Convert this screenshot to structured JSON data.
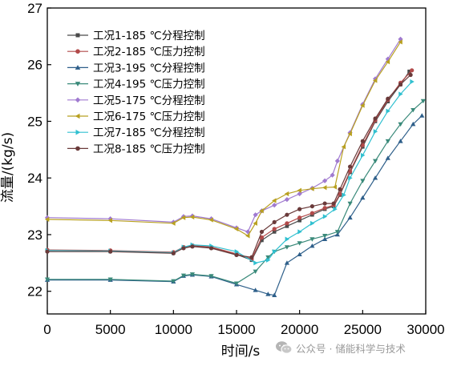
{
  "chart_data": {
    "type": "line",
    "title": "",
    "xlabel": "时间/s",
    "ylabel": "流量/(kg/s)",
    "xlim": [
      0,
      30000
    ],
    "ylim": [
      21.6,
      27
    ],
    "xticks": [
      0,
      5000,
      10000,
      15000,
      20000,
      25000,
      30000
    ],
    "yticks": [
      22,
      23,
      24,
      25,
      26,
      27
    ],
    "grid": false,
    "legend_position": "top-left",
    "series": [
      {
        "name": "工况1-185 ℃分程控制",
        "color": "#4a4a4a",
        "marker": "square",
        "x": [
          0,
          5000,
          10000,
          10800,
          11500,
          13000,
          15000,
          16200,
          17000,
          18000,
          19000,
          20000,
          21000,
          22000,
          22700,
          23200,
          24000,
          25000,
          26000,
          27000,
          28000,
          28700
        ],
        "y": [
          22.72,
          22.71,
          22.68,
          22.77,
          22.8,
          22.77,
          22.65,
          22.55,
          22.9,
          23.05,
          23.15,
          23.25,
          23.35,
          23.45,
          23.5,
          23.7,
          24.1,
          24.55,
          25.0,
          25.35,
          25.65,
          25.88
        ]
      },
      {
        "name": "工况2-185 ℃压力控制",
        "color": "#b24a4a",
        "marker": "circle",
        "x": [
          0,
          5000,
          10000,
          10800,
          11500,
          13000,
          15000,
          16200,
          17000,
          18000,
          19000,
          20000,
          21000,
          22000,
          22700,
          23200,
          24000,
          25000,
          26000,
          27000,
          28000,
          28900
        ],
        "y": [
          22.73,
          22.72,
          22.69,
          22.78,
          22.81,
          22.78,
          22.66,
          22.57,
          22.95,
          23.1,
          23.2,
          23.3,
          23.38,
          23.47,
          23.52,
          23.72,
          24.12,
          24.58,
          25.02,
          25.38,
          25.68,
          25.9
        ]
      },
      {
        "name": "工况3-195 ℃分程控制",
        "color": "#2e5f8a",
        "marker": "triangle-up",
        "x": [
          0,
          5000,
          10000,
          10800,
          11500,
          13000,
          15000,
          16500,
          17500,
          18000,
          19000,
          20000,
          21000,
          22000,
          23000,
          24000,
          25000,
          26000,
          27000,
          28000,
          29000,
          29700
        ],
        "y": [
          22.2,
          22.2,
          22.17,
          22.27,
          22.29,
          22.26,
          22.12,
          22.02,
          21.95,
          21.93,
          22.5,
          22.65,
          22.8,
          22.92,
          23.0,
          23.3,
          23.65,
          24.0,
          24.35,
          24.65,
          24.95,
          25.1
        ]
      },
      {
        "name": "工况4-195 ℃压力控制",
        "color": "#3a8a7a",
        "marker": "triangle-down",
        "x": [
          0,
          5000,
          10000,
          10800,
          11500,
          13000,
          15000,
          16500,
          17500,
          18000,
          19000,
          20000,
          21000,
          22000,
          23000,
          24000,
          25000,
          26000,
          27000,
          28000,
          29000,
          29800
        ],
        "y": [
          22.21,
          22.21,
          22.18,
          22.28,
          22.3,
          22.27,
          22.14,
          22.35,
          22.6,
          22.7,
          22.78,
          22.85,
          22.92,
          22.98,
          23.05,
          23.55,
          23.95,
          24.3,
          24.65,
          24.95,
          25.2,
          25.36
        ]
      },
      {
        "name": "工况5-175 ℃分程控制",
        "color": "#a07ad0",
        "marker": "diamond",
        "x": [
          0,
          5000,
          10000,
          10800,
          11500,
          13000,
          15000,
          15900,
          16500,
          17000,
          18000,
          19000,
          20000,
          21000,
          22000,
          22600,
          23000,
          24000,
          25000,
          26000,
          27000,
          28000
        ],
        "y": [
          23.3,
          23.28,
          23.22,
          23.32,
          23.33,
          23.28,
          23.12,
          23.05,
          23.35,
          23.42,
          23.52,
          23.62,
          23.72,
          23.82,
          23.95,
          24.05,
          24.3,
          24.8,
          25.3,
          25.75,
          26.1,
          26.45
        ]
      },
      {
        "name": "工况6-175 ℃压力控制",
        "color": "#b8a020",
        "marker": "triangle-left",
        "x": [
          0,
          5000,
          10000,
          10800,
          11500,
          13000,
          15000,
          15900,
          16500,
          17000,
          18000,
          19000,
          20000,
          21000,
          22000,
          22800,
          23500,
          24000,
          25000,
          26000,
          27000,
          28000
        ],
        "y": [
          23.27,
          23.25,
          23.2,
          23.3,
          23.31,
          23.26,
          23.1,
          22.98,
          23.2,
          23.42,
          23.6,
          23.72,
          23.78,
          23.81,
          23.83,
          23.84,
          24.55,
          24.78,
          25.28,
          25.72,
          26.05,
          26.4
        ]
      },
      {
        "name": "工况7-185 ℃分程控制",
        "color": "#30c0d0",
        "marker": "triangle-right",
        "x": [
          0,
          5000,
          10000,
          10800,
          11500,
          13000,
          15000,
          16500,
          17500,
          18000,
          19000,
          20000,
          21000,
          22000,
          22800,
          23500,
          24000,
          25000,
          26000,
          27000,
          28000,
          28900
        ],
        "y": [
          22.72,
          22.71,
          22.68,
          22.78,
          22.82,
          22.8,
          22.7,
          22.5,
          22.55,
          22.7,
          22.92,
          23.05,
          23.2,
          23.32,
          23.45,
          23.7,
          24.0,
          24.4,
          24.82,
          25.18,
          25.48,
          25.7
        ]
      },
      {
        "name": "工况8-185 ℃压力控制",
        "color": "#6a3a3a",
        "marker": "hexagon",
        "x": [
          0,
          5000,
          10000,
          10800,
          11500,
          13000,
          15000,
          16200,
          17000,
          18000,
          19000,
          20000,
          21000,
          22000,
          22700,
          23200,
          24000,
          25000,
          26000,
          27000,
          28000,
          28800
        ],
        "y": [
          22.7,
          22.7,
          22.67,
          22.76,
          22.79,
          22.76,
          22.64,
          22.6,
          23.05,
          23.22,
          23.35,
          23.45,
          23.5,
          23.55,
          23.55,
          23.8,
          24.2,
          24.65,
          25.05,
          25.4,
          25.65,
          25.82
        ]
      }
    ]
  },
  "watermark": {
    "text": "公众号 · 储能科学与技术",
    "icon": "wechat-icon"
  }
}
